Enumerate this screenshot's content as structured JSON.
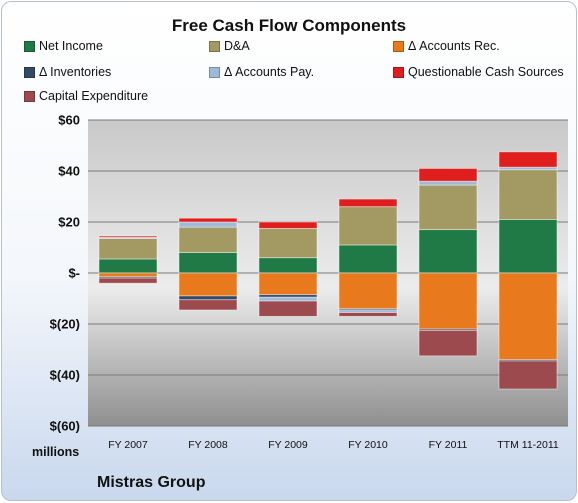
{
  "chart_data": {
    "type": "bar",
    "stacked": true,
    "title": "Free Cash Flow Components",
    "ylabel": "millions",
    "ylim": [
      -60,
      60
    ],
    "yticks": [
      "$60",
      "$40",
      "$20",
      "$-",
      "$(20)",
      "$(40)",
      "$(60)"
    ],
    "ytick_values": [
      60,
      40,
      20,
      0,
      -20,
      -40,
      -60
    ],
    "categories": [
      "FY 2007",
      "FY 2008",
      "FY 2009",
      "FY 2010",
      "FY 2011",
      "TTM 11-2011"
    ],
    "legend_position": "top",
    "series": [
      {
        "name": "Net Income",
        "color": "#1f7a45",
        "values": [
          5.5,
          8,
          6,
          11,
          17,
          21
        ]
      },
      {
        "name": "D&A",
        "color": "#a39a63",
        "values": [
          8,
          10,
          11.5,
          15,
          17.5,
          19.5
        ]
      },
      {
        "name": "Δ Accounts Rec.",
        "color": "#e8791c",
        "values": [
          -1.5,
          -9,
          -8.5,
          -14,
          -22,
          -34
        ]
      },
      {
        "name": "Δ Inventories",
        "color": "#334a66",
        "values": [
          -0.5,
          -1.5,
          -1,
          -0.5,
          -0.5,
          -0.5
        ]
      },
      {
        "name": "Δ Accounts Pay.",
        "color": "#9fb9d9",
        "values": [
          0.5,
          2,
          -1.5,
          -1,
          1.5,
          1
        ]
      },
      {
        "name": "Questionable Cash Sources",
        "color": "#e01e1e",
        "values": [
          0.5,
          1.5,
          2.5,
          3,
          5,
          6
        ]
      },
      {
        "name": "Capital Expenditure",
        "color": "#9c4a4e",
        "values": [
          -2,
          -4,
          -6,
          -1.5,
          -10,
          -11
        ]
      }
    ]
  },
  "units_label": "millions",
  "company": "Mistras Group"
}
